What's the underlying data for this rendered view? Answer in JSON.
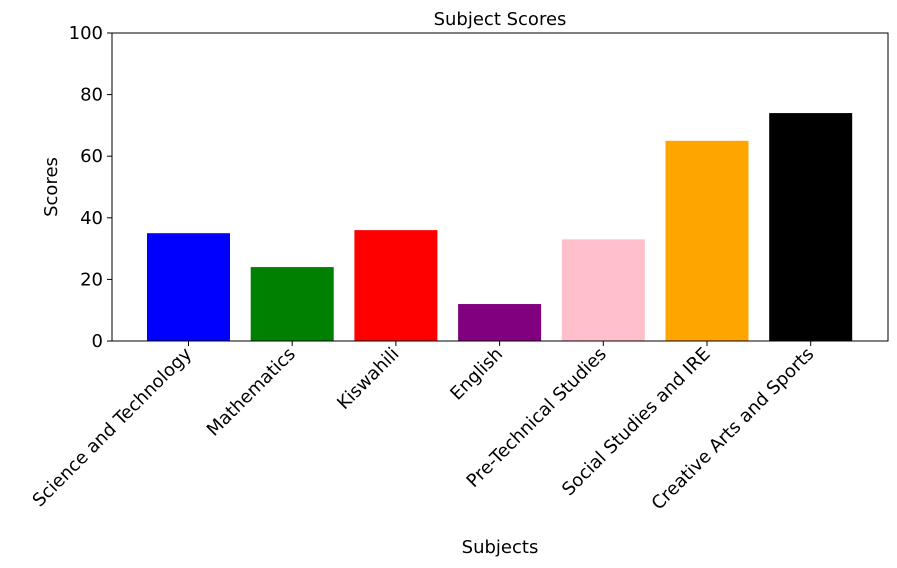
{
  "chart_data": {
    "type": "bar",
    "title": "Subject Scores",
    "xlabel": "Subjects",
    "ylabel": "Scores",
    "ylim": [
      0,
      100
    ],
    "yticks": [
      0,
      20,
      40,
      60,
      80,
      100
    ],
    "grid": false,
    "categories": [
      "Science and Technology",
      "Mathematics",
      "Kiswahili",
      "English",
      "Pre-Technical Studies",
      "Social Studies and IRE",
      "Creative Arts and Sports"
    ],
    "values": [
      35,
      24,
      36,
      12,
      33,
      65,
      74
    ],
    "colors": [
      "#0000ff",
      "#008000",
      "#ff0000",
      "#800080",
      "#ffc0cb",
      "#ffa500",
      "#000000"
    ]
  }
}
